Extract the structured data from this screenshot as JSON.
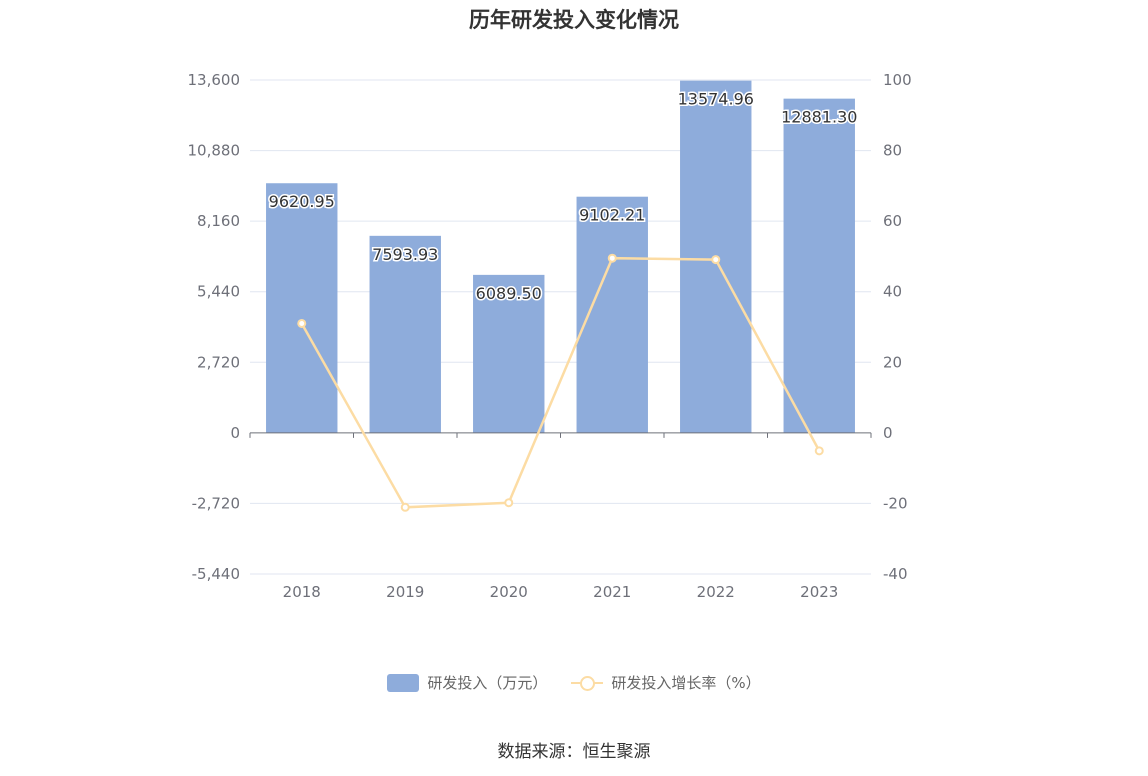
{
  "chart_data": {
    "type": "bar",
    "title": "历年研发投入变化情况",
    "categories": [
      "2018",
      "2019",
      "2020",
      "2021",
      "2022",
      "2023"
    ],
    "series": [
      {
        "name": "研发投入（万元）",
        "type": "bar",
        "axis": "left",
        "values": [
          9620.95,
          7593.93,
          6089.5,
          9102.21,
          13574.96,
          12881.3
        ],
        "labels": [
          "9620.95",
          "7593.93",
          "6089.50",
          "9102.21",
          "13574.96",
          "12881.30"
        ],
        "color": "#8eacdb"
      },
      {
        "name": "研发投入增长率（%）",
        "type": "line",
        "axis": "right",
        "values": [
          31.0,
          -21.1,
          -19.8,
          49.5,
          49.1,
          -5.1
        ],
        "color": "#fcdca4"
      }
    ],
    "y_left": {
      "min": -5440,
      "max": 13600,
      "ticks": [
        13600,
        10880,
        8160,
        5440,
        2720,
        0,
        -2720,
        -5440
      ],
      "tick_labels": [
        "13,600",
        "10,880",
        "8,160",
        "5,440",
        "2,720",
        "0",
        "-2,720",
        "-5,440"
      ]
    },
    "y_right": {
      "min": -40,
      "max": 100,
      "ticks": [
        100,
        80,
        60,
        40,
        20,
        0,
        -20,
        -40
      ],
      "tick_labels": [
        "100",
        "80",
        "60",
        "40",
        "20",
        "0",
        "-20",
        "-40"
      ]
    },
    "grid": true,
    "legend_position": "bottom"
  },
  "legend": {
    "bar_label": "研发投入（万元）",
    "line_label": "研发投入增长率（%）"
  },
  "source": "数据来源：恒生聚源"
}
